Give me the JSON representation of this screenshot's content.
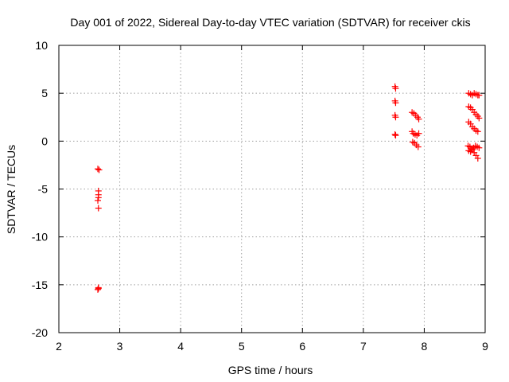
{
  "chart_data": {
    "type": "scatter",
    "title": "Day 001 of 2022, Sidereal Day-to-day VTEC variation (SDTVAR) for receiver ckis",
    "xlabel": "GPS time / hours",
    "ylabel": "SDTVAR / TECUs",
    "xlim": [
      2,
      9
    ],
    "ylim": [
      -20,
      10
    ],
    "xticks": [
      2,
      3,
      4,
      5,
      6,
      7,
      8,
      9
    ],
    "yticks": [
      -20,
      -15,
      -10,
      -5,
      0,
      5,
      10
    ],
    "grid": true,
    "marker": "+",
    "color": "#ff0000",
    "series": [
      {
        "name": "SDTVAR",
        "x": [
          2.64,
          2.66,
          2.65,
          2.65,
          2.65,
          2.64,
          2.65,
          2.65,
          2.64,
          2.65,
          7.52,
          7.53,
          7.52,
          7.53,
          7.52,
          7.53,
          7.52,
          7.53,
          7.8,
          7.83,
          7.86,
          7.89,
          7.91,
          7.8,
          7.82,
          7.85,
          7.88,
          7.91,
          7.81,
          7.84,
          7.87,
          7.9,
          8.73,
          8.76,
          8.79,
          8.82,
          8.85,
          8.88,
          8.9,
          8.73,
          8.76,
          8.79,
          8.82,
          8.85,
          8.88,
          8.9,
          8.73,
          8.76,
          8.79,
          8.82,
          8.85,
          8.88,
          8.72,
          8.75,
          8.78,
          8.81,
          8.84,
          8.87,
          8.9,
          8.73,
          8.76,
          8.79,
          8.82,
          8.85,
          8.88
        ],
        "y": [
          -2.9,
          -3.0,
          -5.2,
          -5.6,
          -5.9,
          -6.2,
          -7.0,
          -15.3,
          -15.5,
          -15.4,
          5.7,
          5.5,
          4.2,
          4.0,
          2.7,
          2.5,
          0.7,
          0.6,
          3.0,
          2.9,
          2.7,
          2.5,
          2.3,
          1.0,
          0.8,
          0.7,
          0.6,
          0.8,
          -0.1,
          -0.2,
          -0.4,
          -0.6,
          5.0,
          4.9,
          4.8,
          5.0,
          4.9,
          4.8,
          4.8,
          3.6,
          3.5,
          3.3,
          3.0,
          2.8,
          2.6,
          2.4,
          2.0,
          1.8,
          1.5,
          1.3,
          1.1,
          1.0,
          -0.5,
          -0.6,
          -0.8,
          -0.7,
          -0.5,
          -0.6,
          -0.7,
          -1.0,
          -1.1,
          -0.9,
          -1.2,
          -1.5,
          -1.8
        ]
      }
    ]
  }
}
